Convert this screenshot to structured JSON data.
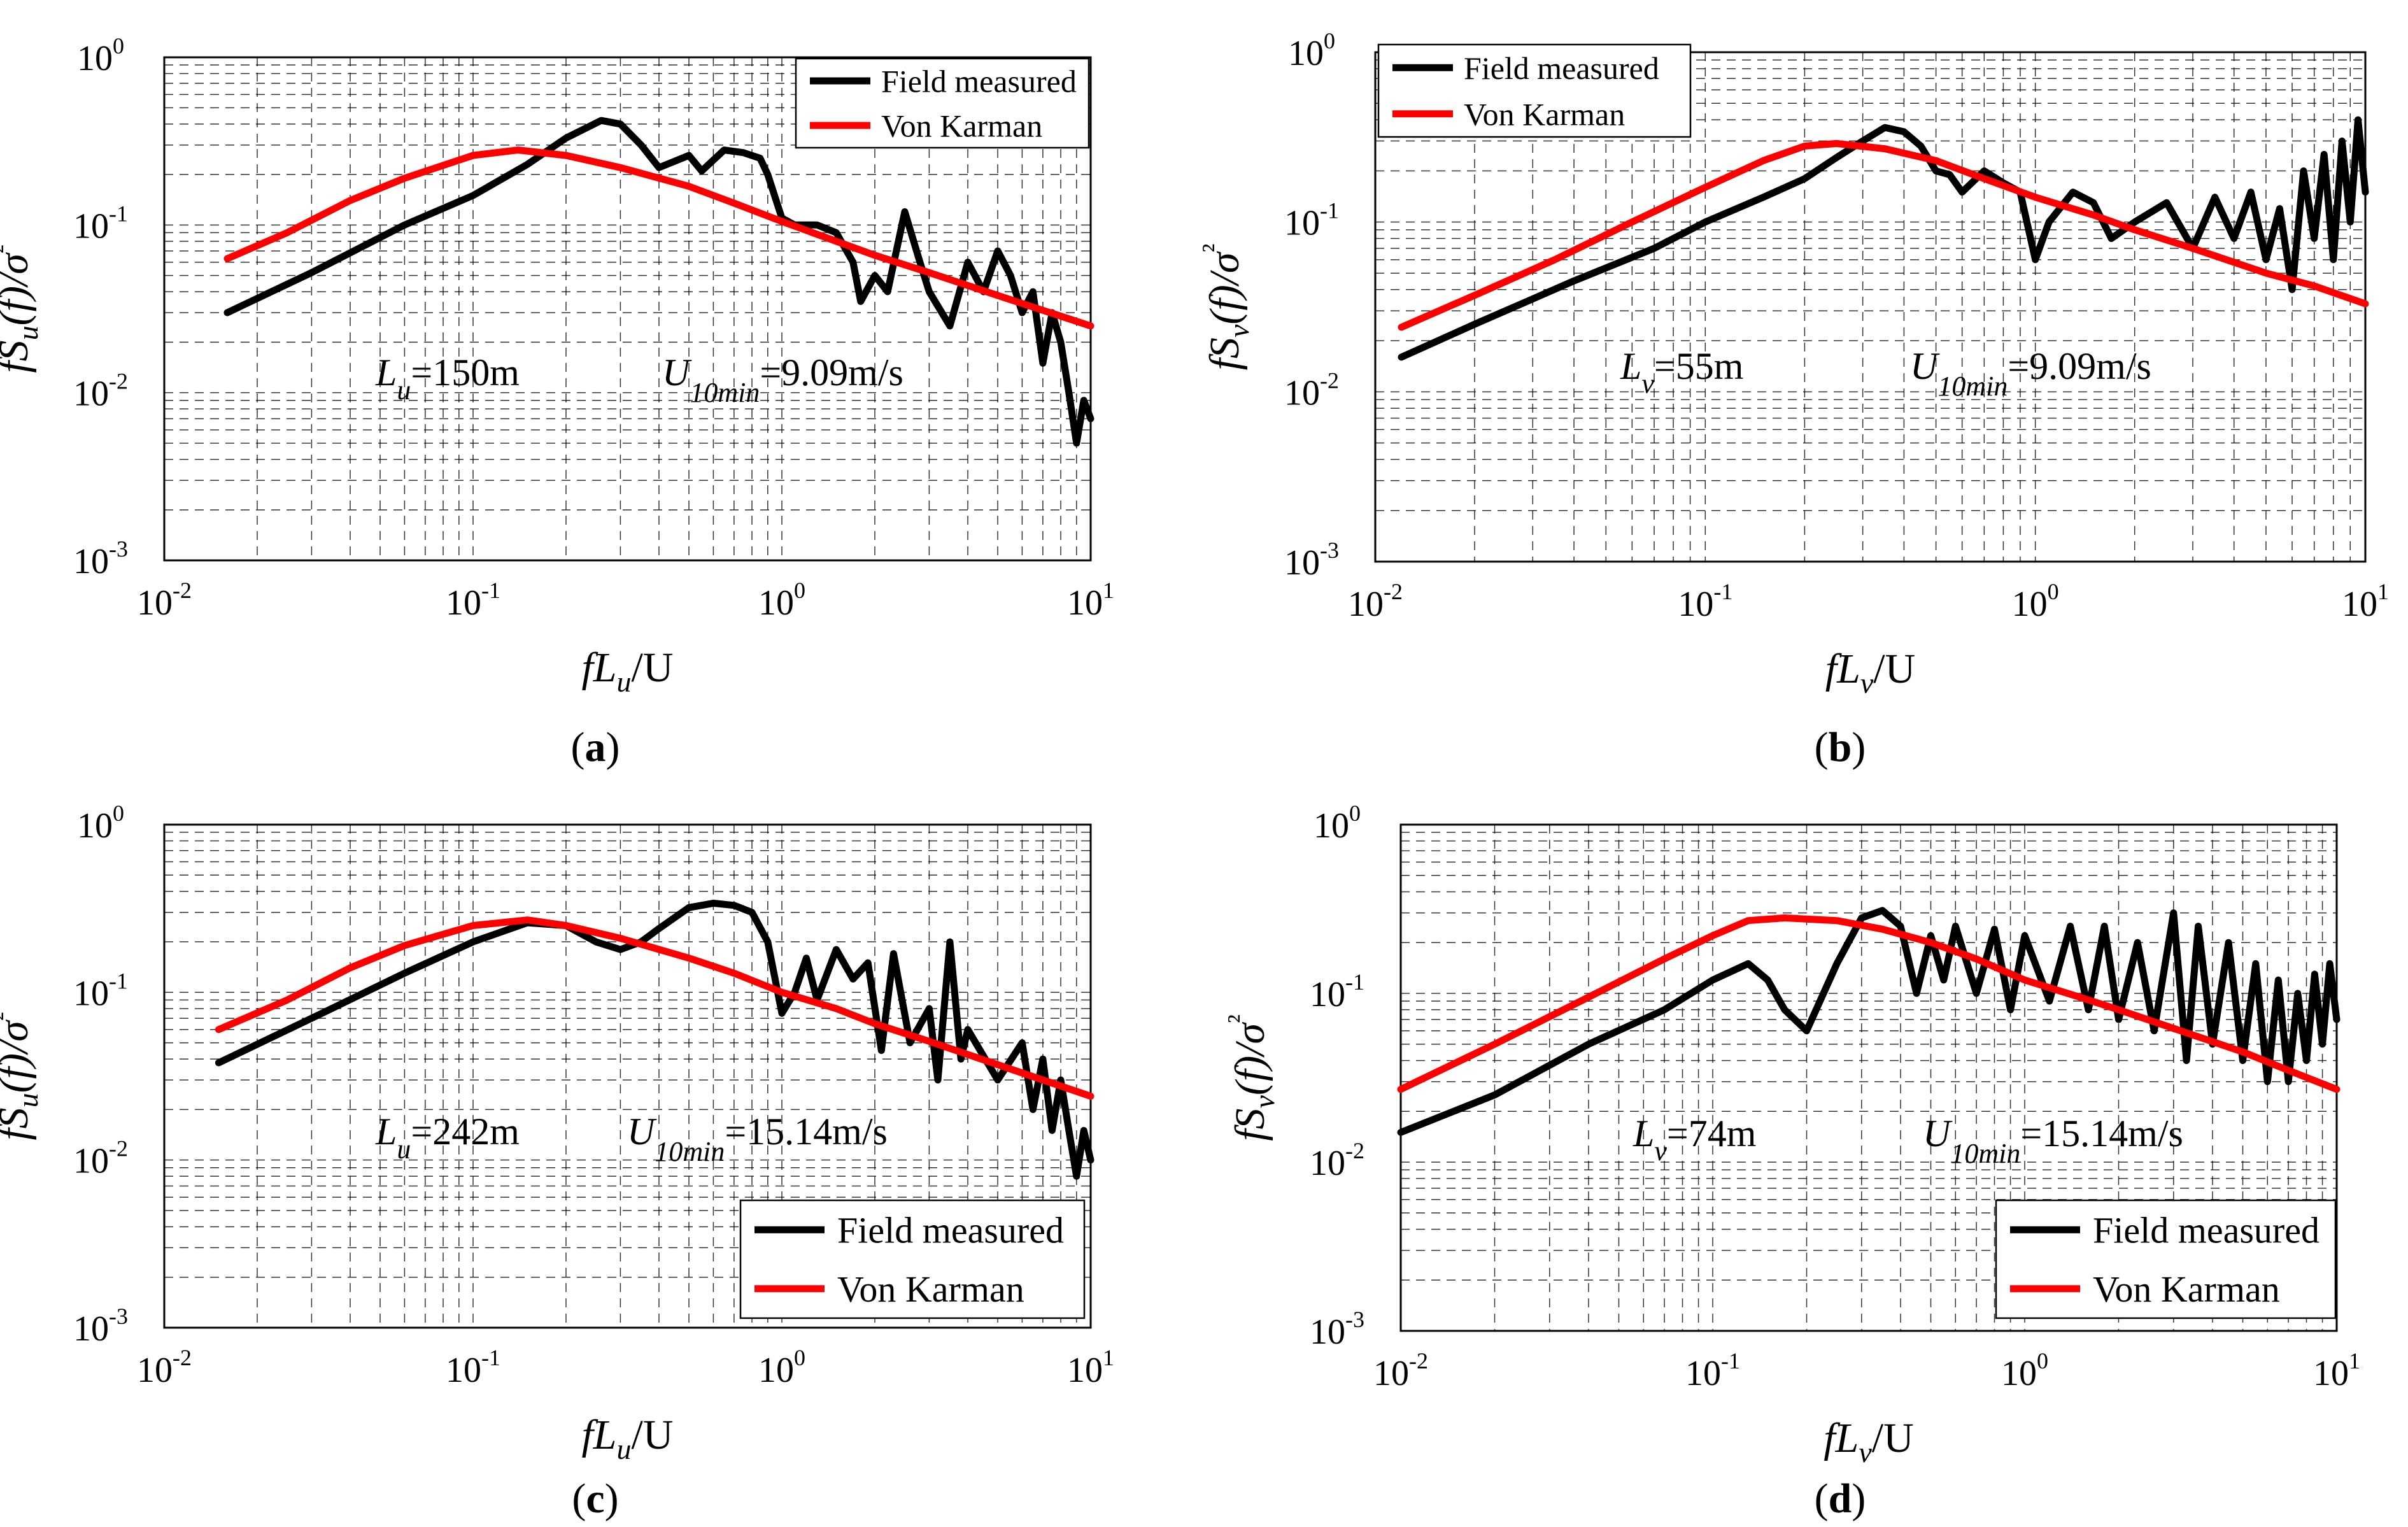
{
  "colors": {
    "measured": "#000000",
    "model": "#ff0000",
    "grid": "#000000",
    "axis": "#000000",
    "background": "#ffffff"
  },
  "chart_data": [
    {
      "type": "line",
      "panel_label": "(a)",
      "scale": "log-log",
      "xlim": [
        0.01,
        10
      ],
      "ylim": [
        0.001,
        1
      ],
      "xlabel": "fL_u/U",
      "ylabel": "fS_u(f)/σ²",
      "x_ticks": [
        0.01,
        0.1,
        1,
        10
      ],
      "y_ticks": [
        0.001,
        0.01,
        0.1,
        1
      ],
      "legend_position": "top-right",
      "annotations": {
        "L_text": "L_u=150m",
        "U_text": "U_10min=9.09m/s"
      },
      "series": [
        {
          "name": "Field measured",
          "color": "#000000",
          "points": [
            [
              0.016,
              0.03
            ],
            [
              0.03,
              0.052
            ],
            [
              0.06,
              0.1
            ],
            [
              0.1,
              0.15
            ],
            [
              0.15,
              0.23
            ],
            [
              0.2,
              0.33
            ],
            [
              0.26,
              0.42
            ],
            [
              0.3,
              0.4
            ],
            [
              0.35,
              0.3
            ],
            [
              0.4,
              0.22
            ],
            [
              0.5,
              0.26
            ],
            [
              0.55,
              0.21
            ],
            [
              0.65,
              0.28
            ],
            [
              0.75,
              0.27
            ],
            [
              0.85,
              0.25
            ],
            [
              0.9,
              0.2
            ],
            [
              1.0,
              0.11
            ],
            [
              1.1,
              0.1
            ],
            [
              1.3,
              0.1
            ],
            [
              1.5,
              0.09
            ],
            [
              1.7,
              0.06
            ],
            [
              1.8,
              0.035
            ],
            [
              2.0,
              0.05
            ],
            [
              2.2,
              0.04
            ],
            [
              2.5,
              0.12
            ],
            [
              2.8,
              0.06
            ],
            [
              3.0,
              0.04
            ],
            [
              3.5,
              0.025
            ],
            [
              4.0,
              0.06
            ],
            [
              4.5,
              0.04
            ],
            [
              5.0,
              0.07
            ],
            [
              5.5,
              0.05
            ],
            [
              6.0,
              0.03
            ],
            [
              6.5,
              0.04
            ],
            [
              7.0,
              0.015
            ],
            [
              7.5,
              0.03
            ],
            [
              8.0,
              0.02
            ],
            [
              8.5,
              0.01
            ],
            [
              9.0,
              0.005
            ],
            [
              9.5,
              0.009
            ],
            [
              10.0,
              0.007
            ]
          ]
        },
        {
          "name": "Von Karman",
          "color": "#ff0000",
          "points": [
            [
              0.016,
              0.063
            ],
            [
              0.025,
              0.09
            ],
            [
              0.04,
              0.14
            ],
            [
              0.06,
              0.19
            ],
            [
              0.1,
              0.26
            ],
            [
              0.14,
              0.28
            ],
            [
              0.2,
              0.26
            ],
            [
              0.3,
              0.22
            ],
            [
              0.5,
              0.17
            ],
            [
              0.7,
              0.135
            ],
            [
              1.0,
              0.105
            ],
            [
              1.5,
              0.08
            ],
            [
              2.0,
              0.066
            ],
            [
              3.0,
              0.052
            ],
            [
              5.0,
              0.038
            ],
            [
              7.0,
              0.031
            ],
            [
              10.0,
              0.025
            ]
          ]
        }
      ]
    },
    {
      "type": "line",
      "panel_label": "(b)",
      "scale": "log-log",
      "xlim": [
        0.01,
        10
      ],
      "ylim": [
        0.001,
        1
      ],
      "xlabel": "fL_v/U",
      "ylabel": "fS_v(f)/σ²",
      "x_ticks": [
        0.01,
        0.1,
        1,
        10
      ],
      "y_ticks": [
        0.001,
        0.01,
        0.1,
        1
      ],
      "legend_position": "top-left",
      "annotations": {
        "L_text": "L_v=55m",
        "U_text": "U_10min=9.09m/s"
      },
      "series": [
        {
          "name": "Field measured",
          "color": "#000000",
          "points": [
            [
              0.012,
              0.016
            ],
            [
              0.02,
              0.025
            ],
            [
              0.04,
              0.045
            ],
            [
              0.07,
              0.07
            ],
            [
              0.1,
              0.1
            ],
            [
              0.15,
              0.14
            ],
            [
              0.2,
              0.18
            ],
            [
              0.25,
              0.24
            ],
            [
              0.3,
              0.3
            ],
            [
              0.35,
              0.36
            ],
            [
              0.4,
              0.34
            ],
            [
              0.45,
              0.28
            ],
            [
              0.5,
              0.2
            ],
            [
              0.55,
              0.19
            ],
            [
              0.6,
              0.15
            ],
            [
              0.7,
              0.2
            ],
            [
              0.8,
              0.17
            ],
            [
              0.9,
              0.15
            ],
            [
              1.0,
              0.06
            ],
            [
              1.1,
              0.1
            ],
            [
              1.3,
              0.15
            ],
            [
              1.5,
              0.13
            ],
            [
              1.7,
              0.08
            ],
            [
              2.0,
              0.1
            ],
            [
              2.5,
              0.13
            ],
            [
              3.0,
              0.07
            ],
            [
              3.5,
              0.14
            ],
            [
              4.0,
              0.08
            ],
            [
              4.5,
              0.15
            ],
            [
              5.0,
              0.06
            ],
            [
              5.5,
              0.12
            ],
            [
              6.0,
              0.04
            ],
            [
              6.5,
              0.2
            ],
            [
              7.0,
              0.08
            ],
            [
              7.5,
              0.25
            ],
            [
              8.0,
              0.06
            ],
            [
              8.5,
              0.3
            ],
            [
              9.0,
              0.1
            ],
            [
              9.5,
              0.4
            ],
            [
              10.0,
              0.15
            ]
          ]
        },
        {
          "name": "Von Karman",
          "color": "#ff0000",
          "points": [
            [
              0.012,
              0.024
            ],
            [
              0.02,
              0.037
            ],
            [
              0.035,
              0.06
            ],
            [
              0.06,
              0.1
            ],
            [
              0.1,
              0.16
            ],
            [
              0.15,
              0.23
            ],
            [
              0.2,
              0.28
            ],
            [
              0.25,
              0.29
            ],
            [
              0.35,
              0.27
            ],
            [
              0.5,
              0.23
            ],
            [
              0.7,
              0.18
            ],
            [
              1.0,
              0.14
            ],
            [
              1.5,
              0.11
            ],
            [
              2.0,
              0.09
            ],
            [
              3.0,
              0.07
            ],
            [
              5.0,
              0.05
            ],
            [
              7.0,
              0.042
            ],
            [
              10.0,
              0.033
            ]
          ]
        }
      ]
    },
    {
      "type": "line",
      "panel_label": "(c)",
      "scale": "log-log",
      "xlim": [
        0.01,
        10
      ],
      "ylim": [
        0.001,
        1
      ],
      "xlabel": "fL_u/U",
      "ylabel": "fS_u(f)/σ²",
      "x_ticks": [
        0.01,
        0.1,
        1,
        10
      ],
      "y_ticks": [
        0.001,
        0.01,
        0.1,
        1
      ],
      "legend_position": "bottom-right",
      "annotations": {
        "L_text": "L_u=242m",
        "U_text": "U_10min=15.14m/s"
      },
      "series": [
        {
          "name": "Field measured",
          "color": "#000000",
          "points": [
            [
              0.015,
              0.038
            ],
            [
              0.03,
              0.07
            ],
            [
              0.06,
              0.13
            ],
            [
              0.1,
              0.2
            ],
            [
              0.15,
              0.26
            ],
            [
              0.2,
              0.25
            ],
            [
              0.25,
              0.2
            ],
            [
              0.3,
              0.18
            ],
            [
              0.35,
              0.2
            ],
            [
              0.4,
              0.24
            ],
            [
              0.5,
              0.32
            ],
            [
              0.6,
              0.34
            ],
            [
              0.7,
              0.33
            ],
            [
              0.8,
              0.3
            ],
            [
              0.9,
              0.2
            ],
            [
              1.0,
              0.075
            ],
            [
              1.1,
              0.1
            ],
            [
              1.2,
              0.16
            ],
            [
              1.3,
              0.09
            ],
            [
              1.5,
              0.18
            ],
            [
              1.7,
              0.12
            ],
            [
              1.9,
              0.15
            ],
            [
              2.1,
              0.045
            ],
            [
              2.3,
              0.17
            ],
            [
              2.6,
              0.05
            ],
            [
              3.0,
              0.08
            ],
            [
              3.2,
              0.03
            ],
            [
              3.5,
              0.2
            ],
            [
              3.8,
              0.04
            ],
            [
              4.0,
              0.06
            ],
            [
              5.0,
              0.03
            ],
            [
              6.0,
              0.05
            ],
            [
              6.5,
              0.02
            ],
            [
              7.0,
              0.04
            ],
            [
              7.5,
              0.015
            ],
            [
              8.0,
              0.03
            ],
            [
              8.5,
              0.015
            ],
            [
              9.0,
              0.008
            ],
            [
              9.5,
              0.015
            ],
            [
              10.0,
              0.01
            ]
          ]
        },
        {
          "name": "Von Karman",
          "color": "#ff0000",
          "points": [
            [
              0.015,
              0.06
            ],
            [
              0.025,
              0.09
            ],
            [
              0.04,
              0.14
            ],
            [
              0.06,
              0.19
            ],
            [
              0.1,
              0.25
            ],
            [
              0.15,
              0.27
            ],
            [
              0.2,
              0.25
            ],
            [
              0.3,
              0.21
            ],
            [
              0.5,
              0.16
            ],
            [
              0.7,
              0.13
            ],
            [
              1.0,
              0.1
            ],
            [
              1.5,
              0.08
            ],
            [
              2.0,
              0.065
            ],
            [
              3.0,
              0.051
            ],
            [
              5.0,
              0.037
            ],
            [
              7.0,
              0.03
            ],
            [
              10.0,
              0.024
            ]
          ]
        }
      ]
    },
    {
      "type": "line",
      "panel_label": "(d)",
      "scale": "log-log",
      "xlim": [
        0.01,
        10
      ],
      "ylim": [
        0.001,
        1
      ],
      "xlabel": "fL_v/U",
      "ylabel": "fS_v(f)/σ²",
      "x_ticks": [
        0.01,
        0.1,
        1,
        10
      ],
      "y_ticks": [
        0.001,
        0.01,
        0.1,
        1
      ],
      "legend_position": "bottom-right",
      "annotations": {
        "L_text": "L_v=74m",
        "U_text": "U_10min=15.14m/s"
      },
      "series": [
        {
          "name": "Field measured",
          "color": "#000000",
          "points": [
            [
              0.01,
              0.015
            ],
            [
              0.02,
              0.025
            ],
            [
              0.04,
              0.05
            ],
            [
              0.07,
              0.08
            ],
            [
              0.1,
              0.12
            ],
            [
              0.13,
              0.15
            ],
            [
              0.15,
              0.12
            ],
            [
              0.17,
              0.08
            ],
            [
              0.2,
              0.06
            ],
            [
              0.25,
              0.15
            ],
            [
              0.3,
              0.28
            ],
            [
              0.35,
              0.31
            ],
            [
              0.4,
              0.25
            ],
            [
              0.45,
              0.1
            ],
            [
              0.5,
              0.22
            ],
            [
              0.55,
              0.12
            ],
            [
              0.6,
              0.25
            ],
            [
              0.7,
              0.1
            ],
            [
              0.8,
              0.24
            ],
            [
              0.9,
              0.08
            ],
            [
              1.0,
              0.22
            ],
            [
              1.2,
              0.09
            ],
            [
              1.4,
              0.25
            ],
            [
              1.6,
              0.08
            ],
            [
              1.8,
              0.25
            ],
            [
              2.0,
              0.07
            ],
            [
              2.3,
              0.2
            ],
            [
              2.6,
              0.06
            ],
            [
              3.0,
              0.3
            ],
            [
              3.3,
              0.04
            ],
            [
              3.6,
              0.25
            ],
            [
              4.0,
              0.05
            ],
            [
              4.5,
              0.2
            ],
            [
              5.0,
              0.04
            ],
            [
              5.5,
              0.15
            ],
            [
              6.0,
              0.03
            ],
            [
              6.5,
              0.12
            ],
            [
              7.0,
              0.03
            ],
            [
              7.5,
              0.1
            ],
            [
              8.0,
              0.04
            ],
            [
              8.5,
              0.13
            ],
            [
              9.0,
              0.05
            ],
            [
              9.5,
              0.15
            ],
            [
              10.0,
              0.07
            ]
          ]
        },
        {
          "name": "Von Karman",
          "color": "#ff0000",
          "points": [
            [
              0.01,
              0.027
            ],
            [
              0.02,
              0.05
            ],
            [
              0.04,
              0.095
            ],
            [
              0.07,
              0.16
            ],
            [
              0.1,
              0.22
            ],
            [
              0.13,
              0.27
            ],
            [
              0.17,
              0.28
            ],
            [
              0.25,
              0.27
            ],
            [
              0.35,
              0.24
            ],
            [
              0.5,
              0.2
            ],
            [
              0.7,
              0.16
            ],
            [
              1.0,
              0.12
            ],
            [
              1.5,
              0.095
            ],
            [
              2.0,
              0.08
            ],
            [
              3.0,
              0.062
            ],
            [
              5.0,
              0.045
            ],
            [
              7.0,
              0.035
            ],
            [
              10.0,
              0.027
            ]
          ]
        }
      ]
    }
  ]
}
